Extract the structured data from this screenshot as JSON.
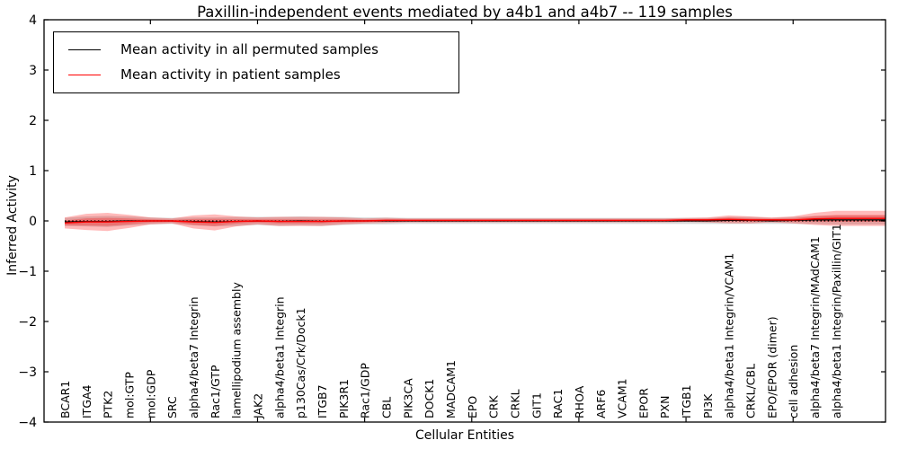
{
  "chart_data": {
    "type": "line",
    "title": "Paxillin-independent events mediated by a4b1 and a4b7 -- 119 samples",
    "xlabel": "Cellular Entities",
    "ylabel": "Inferred Activity",
    "ylim": [
      -4,
      4
    ],
    "yticks": [
      4,
      3,
      2,
      1,
      0,
      -1,
      -2,
      -3,
      -4
    ],
    "ytick_labels": [
      "4",
      "3",
      "2",
      "1",
      "0",
      "−1",
      "−2",
      "−3",
      "−4"
    ],
    "grid": false,
    "legend_position": "upper left",
    "zero_reference_line": "black dotted at y=0",
    "major_xtick_indices": [
      4,
      9,
      14,
      19,
      24,
      29,
      34
    ],
    "categories": [
      "BCAR1",
      "ITGA4",
      "PTK2",
      "mol:GTP",
      "mol:GDP",
      "SRC",
      "alpha4/beta7 Integrin",
      "Rac1/GTP",
      "lamellipodium assembly",
      "JAK2",
      "alpha4/beta1 Integrin",
      "p130Cas/Crk/Dock1",
      "ITGB7",
      "PIK3R1",
      "Rac1/GDP",
      "CBL",
      "PIK3CA",
      "DOCK1",
      "MADCAM1",
      "EPO",
      "CRK",
      "CRKL",
      "GIT1",
      "RAC1",
      "RHOA",
      "ARF6",
      "VCAM1",
      "EPOR",
      "PXN",
      "ITGB1",
      "PI3K",
      "alpha4/beta1 Integrin/VCAM1",
      "CRKL/CBL",
      "EPO/EPOR (dimer)",
      "cell adhesion",
      "alpha4/beta7 Integrin/MAdCAM1",
      "alpha4/beta1 Integrin/Paxillin/GIT1"
    ],
    "series": [
      {
        "name": "Mean activity in all permuted samples",
        "color": "#000000",
        "band_color": "rgba(0,0,0,0.15)",
        "values": [
          -0.02,
          -0.01,
          -0.01,
          0,
          0,
          0,
          -0.01,
          -0.02,
          -0.01,
          0,
          -0.01,
          0,
          -0.01,
          0,
          0,
          0,
          0,
          0,
          0,
          0,
          0,
          0,
          0,
          0,
          0,
          0,
          0,
          0,
          0,
          0,
          0,
          0.01,
          0.01,
          0,
          0.01,
          0.02,
          0.02
        ],
        "band": [
          0.08,
          0.1,
          0.11,
          0.09,
          0.07,
          0.06,
          0.08,
          0.09,
          0.09,
          0.08,
          0.09,
          0.09,
          0.09,
          0.08,
          0.07,
          0.07,
          0.06,
          0.06,
          0.06,
          0.06,
          0.06,
          0.06,
          0.06,
          0.06,
          0.06,
          0.06,
          0.06,
          0.06,
          0.06,
          0.06,
          0.06,
          0.07,
          0.07,
          0.06,
          0.07,
          0.08,
          0.09
        ]
      },
      {
        "name": "Mean activity in patient samples",
        "color": "#ff0000",
        "band_color": "rgba(255,0,0,0.27)",
        "values": [
          -0.04,
          -0.02,
          -0.02,
          -0.01,
          0,
          0,
          -0.02,
          -0.03,
          -0.01,
          0,
          -0.01,
          -0.01,
          -0.01,
          0,
          0,
          0.01,
          0.01,
          0.01,
          0.01,
          0.01,
          0.01,
          0.01,
          0.01,
          0.01,
          0.01,
          0.01,
          0.01,
          0.01,
          0.01,
          0.02,
          0.02,
          0.03,
          0.02,
          0.02,
          0.02,
          0.04,
          0.05
        ],
        "band": [
          0.11,
          0.16,
          0.18,
          0.13,
          0.07,
          0.05,
          0.13,
          0.16,
          0.1,
          0.07,
          0.09,
          0.09,
          0.09,
          0.07,
          0.05,
          0.05,
          0.04,
          0.04,
          0.04,
          0.04,
          0.04,
          0.04,
          0.04,
          0.04,
          0.04,
          0.04,
          0.04,
          0.04,
          0.04,
          0.04,
          0.05,
          0.08,
          0.07,
          0.05,
          0.07,
          0.12,
          0.15
        ]
      }
    ]
  },
  "colors": {
    "background": "#ffffff",
    "axis": "#000000",
    "text": "#000000",
    "permuted_line": "#000000",
    "patient_line": "#ff0000"
  }
}
